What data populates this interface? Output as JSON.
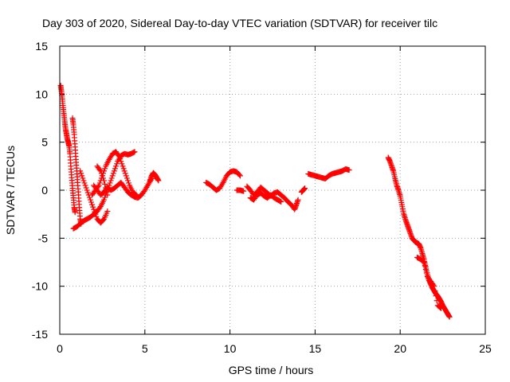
{
  "chart_data": {
    "type": "scatter",
    "title": "Day 303 of 2020, Sidereal Day-to-day VTEC variation (SDTVAR) for receiver tilc",
    "xlabel": "GPS time / hours",
    "ylabel": "SDTVAR / TECUs",
    "xlim": [
      0,
      25
    ],
    "ylim": [
      -15,
      15
    ],
    "xticks": [
      "0",
      "5",
      "10",
      "15",
      "20",
      "25"
    ],
    "yticks": [
      "-15",
      "-10",
      "-5",
      "0",
      "5",
      "10",
      "15"
    ],
    "grid": true,
    "marker": "plus",
    "series": [
      {
        "name": "SDTVAR",
        "color": "#ff0000",
        "tracks": [
          [
            [
              0.05,
              10.9
            ],
            [
              0.1,
              10.3
            ],
            [
              0.15,
              9.5
            ],
            [
              0.2,
              8.6
            ],
            [
              0.25,
              7.8
            ],
            [
              0.3,
              7.0
            ],
            [
              0.35,
              6.3
            ],
            [
              0.4,
              5.8
            ],
            [
              0.45,
              5.3
            ],
            [
              0.5,
              5.0
            ],
            [
              0.55,
              4.6
            ],
            [
              0.6,
              3.8
            ],
            [
              0.65,
              2.5
            ],
            [
              0.7,
              1.3
            ],
            [
              0.75,
              0.2
            ],
            [
              0.8,
              -0.8
            ],
            [
              0.85,
              -1.8
            ],
            [
              0.9,
              -2.3
            ]
          ],
          [
            [
              0.75,
              7.5
            ],
            [
              0.8,
              6.8
            ],
            [
              0.85,
              5.8
            ],
            [
              0.9,
              4.5
            ],
            [
              0.95,
              3.2
            ],
            [
              1.0,
              2.0
            ],
            [
              1.05,
              0.8
            ],
            [
              1.1,
              -0.5
            ],
            [
              1.15,
              -1.8
            ],
            [
              1.2,
              -3.0
            ],
            [
              1.25,
              -3.5
            ]
          ],
          [
            [
              0.8,
              -4.0
            ],
            [
              1.0,
              -3.8
            ],
            [
              1.2,
              -3.5
            ],
            [
              1.4,
              -3.2
            ],
            [
              1.6,
              -3.0
            ],
            [
              1.8,
              -2.8
            ],
            [
              2.0,
              -2.5
            ],
            [
              2.2,
              -2.2
            ],
            [
              2.4,
              -1.7
            ],
            [
              2.6,
              -1.0
            ],
            [
              2.8,
              0.0
            ],
            [
              3.0,
              1.0
            ],
            [
              3.2,
              2.0
            ],
            [
              3.4,
              3.0
            ],
            [
              3.6,
              3.6
            ],
            [
              3.8,
              3.8
            ],
            [
              4.0,
              3.7
            ],
            [
              4.2,
              3.8
            ],
            [
              4.4,
              4.0
            ]
          ],
          [
            [
              1.2,
              2.0
            ],
            [
              1.4,
              1.0
            ],
            [
              1.6,
              0.0
            ],
            [
              1.8,
              -1.0
            ],
            [
              2.0,
              -2.0
            ],
            [
              2.2,
              -3.0
            ],
            [
              2.4,
              -3.4
            ],
            [
              2.6,
              -3.0
            ],
            [
              2.8,
              -2.2
            ]
          ],
          [
            [
              1.9,
              -0.5
            ],
            [
              2.1,
              0.0
            ],
            [
              2.3,
              0.5
            ],
            [
              2.5,
              1.5
            ],
            [
              2.7,
              2.5
            ],
            [
              2.9,
              3.2
            ],
            [
              3.1,
              3.8
            ],
            [
              3.3,
              4.0
            ],
            [
              3.5,
              3.5
            ],
            [
              3.7,
              2.5
            ],
            [
              3.9,
              1.5
            ],
            [
              4.1,
              0.5
            ],
            [
              4.3,
              -0.2
            ],
            [
              4.5,
              -0.5
            ]
          ],
          [
            [
              2.0,
              0.5
            ],
            [
              2.2,
              0.0
            ],
            [
              2.4,
              -0.5
            ],
            [
              2.6,
              -0.2
            ],
            [
              2.8,
              0.3
            ],
            [
              3.0,
              0.0
            ],
            [
              3.2,
              0.2
            ],
            [
              3.4,
              0.5
            ],
            [
              3.6,
              0.8
            ],
            [
              3.8,
              0.3
            ],
            [
              4.0,
              -0.2
            ],
            [
              4.2,
              -0.5
            ],
            [
              4.4,
              -0.7
            ],
            [
              4.6,
              -0.8
            ],
            [
              4.8,
              -0.5
            ],
            [
              5.0,
              0.0
            ],
            [
              5.2,
              0.6
            ],
            [
              5.4,
              1.2
            ]
          ],
          [
            [
              2.2,
              2.5
            ],
            [
              2.4,
              2.0
            ],
            [
              2.6,
              1.0
            ],
            [
              2.8,
              -0.5
            ]
          ],
          [
            [
              5.3,
              1.0
            ],
            [
              5.4,
              1.5
            ],
            [
              5.5,
              1.8
            ],
            [
              5.6,
              1.6
            ],
            [
              5.7,
              1.3
            ],
            [
              5.8,
              1.0
            ]
          ],
          [
            [
              8.6,
              0.8
            ],
            [
              8.8,
              0.6
            ],
            [
              9.0,
              0.3
            ],
            [
              9.2,
              0.0
            ],
            [
              9.4,
              0.2
            ],
            [
              9.6,
              0.8
            ],
            [
              9.8,
              1.5
            ],
            [
              10.0,
              1.9
            ],
            [
              10.2,
              2.0
            ],
            [
              10.4,
              1.9
            ],
            [
              10.6,
              1.5
            ]
          ],
          [
            [
              10.4,
              0.0
            ],
            [
              10.6,
              0.0
            ],
            [
              10.8,
              -0.1
            ]
          ],
          [
            [
              11.0,
              0.4
            ],
            [
              11.2,
              0.0
            ],
            [
              11.4,
              -0.5
            ],
            [
              11.6,
              -0.2
            ],
            [
              11.8,
              0.3
            ],
            [
              12.0,
              0.0
            ],
            [
              12.2,
              -0.3
            ],
            [
              12.4,
              -0.6
            ],
            [
              12.6,
              -0.3
            ],
            [
              12.8,
              -0.2
            ],
            [
              13.0,
              -0.5
            ],
            [
              13.2,
              -0.8
            ],
            [
              13.4,
              -1.2
            ],
            [
              13.6,
              -1.5
            ],
            [
              13.8,
              -2.0
            ],
            [
              13.9,
              -1.5
            ],
            [
              14.0,
              -1.0
            ]
          ],
          [
            [
              11.2,
              -0.8
            ],
            [
              11.4,
              -1.0
            ],
            [
              11.6,
              -0.5
            ],
            [
              11.8,
              -0.3
            ],
            [
              12.0,
              -0.6
            ],
            [
              12.2,
              -0.8
            ],
            [
              12.4,
              -0.5
            ],
            [
              12.6,
              -0.8
            ],
            [
              12.8,
              -1.0
            ],
            [
              13.0,
              -1.2
            ]
          ],
          [
            [
              14.2,
              -0.2
            ],
            [
              14.3,
              0.0
            ],
            [
              14.4,
              0.2
            ]
          ],
          [
            [
              14.6,
              1.7
            ],
            [
              14.8,
              1.6
            ],
            [
              15.0,
              1.5
            ],
            [
              15.2,
              1.4
            ],
            [
              15.4,
              1.3
            ],
            [
              15.6,
              1.2
            ],
            [
              15.8,
              1.5
            ],
            [
              16.0,
              1.7
            ],
            [
              16.2,
              1.8
            ],
            [
              16.4,
              1.9
            ],
            [
              16.6,
              2.0
            ],
            [
              16.8,
              2.2
            ],
            [
              17.0,
              2.1
            ]
          ],
          [
            [
              19.3,
              3.4
            ],
            [
              19.4,
              3.0
            ],
            [
              19.5,
              2.5
            ],
            [
              19.6,
              2.0
            ],
            [
              19.7,
              1.2
            ],
            [
              19.8,
              0.5
            ],
            [
              19.9,
              0.0
            ],
            [
              20.0,
              -0.6
            ],
            [
              20.1,
              -1.5
            ],
            [
              20.2,
              -2.4
            ],
            [
              20.3,
              -3.0
            ],
            [
              20.4,
              -3.5
            ],
            [
              20.5,
              -4.0
            ],
            [
              20.6,
              -4.5
            ],
            [
              20.7,
              -5.0
            ],
            [
              20.8,
              -5.2
            ],
            [
              20.9,
              -5.4
            ],
            [
              21.0,
              -5.5
            ],
            [
              21.1,
              -5.6
            ],
            [
              21.2,
              -6.0
            ],
            [
              21.3,
              -6.6
            ],
            [
              21.4,
              -7.2
            ],
            [
              21.5,
              -8.0
            ],
            [
              21.6,
              -8.8
            ],
            [
              21.7,
              -9.4
            ],
            [
              21.8,
              -9.8
            ],
            [
              21.9,
              -10.2
            ],
            [
              22.0,
              -10.5
            ],
            [
              22.1,
              -10.8
            ],
            [
              22.2,
              -11.0
            ],
            [
              22.3,
              -11.3
            ],
            [
              22.4,
              -11.6
            ],
            [
              22.5,
              -12.0
            ],
            [
              22.6,
              -12.3
            ],
            [
              22.7,
              -12.6
            ],
            [
              22.8,
              -12.9
            ],
            [
              22.9,
              -13.2
            ]
          ],
          [
            [
              21.0,
              -7.0
            ],
            [
              21.2,
              -7.2
            ],
            [
              21.4,
              -7.5
            ],
            [
              21.6,
              -9.0
            ],
            [
              21.8,
              -9.5
            ],
            [
              22.0,
              -10.0
            ],
            [
              22.2,
              -12.0
            ],
            [
              22.4,
              -12.3
            ]
          ]
        ]
      }
    ]
  }
}
